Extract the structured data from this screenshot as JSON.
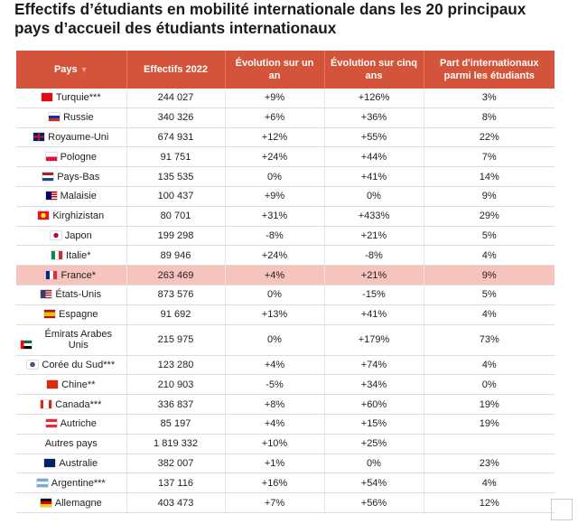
{
  "title": "Effectifs d’étudiants en mobilité internationale dans les 20 principaux pays d’accueil des étudiants internationaux",
  "headers": {
    "country": "Pays",
    "sort_indicator": "▼",
    "effectifs": "Effectifs 2022",
    "evol_1": "Évolution sur un an",
    "evol_5": "Évolution sur cinq ans",
    "share": "Part d'internationaux parmi les étudiants"
  },
  "rows": [
    {
      "country": "Turquie***",
      "flag": "flag-turkey-icon",
      "effectifs": "244 027",
      "evol_1": "+9%",
      "evol_5": "+126%",
      "share": "3%"
    },
    {
      "country": "Russie",
      "flag": "flag-russia-icon",
      "effectifs": "340 326",
      "evol_1": "+6%",
      "evol_5": "+36%",
      "share": "8%"
    },
    {
      "country": "Royaume-Uni",
      "flag": "flag-uk-icon",
      "effectifs": "674 931",
      "evol_1": "+12%",
      "evol_5": "+55%",
      "share": "22%"
    },
    {
      "country": "Pologne",
      "flag": "flag-poland-icon",
      "effectifs": "91 751",
      "evol_1": "+24%",
      "evol_5": "+44%",
      "share": "7%"
    },
    {
      "country": "Pays-Bas",
      "flag": "flag-netherlands-icon",
      "effectifs": "135 535",
      "evol_1": "0%",
      "evol_5": "+41%",
      "share": "14%"
    },
    {
      "country": "Malaisie",
      "flag": "flag-malaysia-icon",
      "effectifs": "100 437",
      "evol_1": "+9%",
      "evol_5": "0%",
      "share": "9%"
    },
    {
      "country": "Kirghizistan",
      "flag": "flag-kyrgyzstan-icon",
      "effectifs": "80 701",
      "evol_1": "+31%",
      "evol_5": "+433%",
      "share": "29%"
    },
    {
      "country": "Japon",
      "flag": "flag-japan-icon",
      "effectifs": "199 298",
      "evol_1": "-8%",
      "evol_5": "+21%",
      "share": "5%"
    },
    {
      "country": "Italie*",
      "flag": "flag-italy-icon",
      "effectifs": "89 946",
      "evol_1": "+24%",
      "evol_5": "-8%",
      "share": "4%"
    },
    {
      "country": "France*",
      "flag": "flag-france-icon",
      "effectifs": "263 469",
      "evol_1": "+4%",
      "evol_5": "+21%",
      "share": "9%",
      "highlight": true
    },
    {
      "country": "États-Unis",
      "flag": "flag-usa-icon",
      "effectifs": "873 576",
      "evol_1": "0%",
      "evol_5": "-15%",
      "share": "5%"
    },
    {
      "country": "Espagne",
      "flag": "flag-spain-icon",
      "effectifs": "91 692",
      "evol_1": "+13%",
      "evol_5": "+41%",
      "share": "4%"
    },
    {
      "country": "Émirats Arabes Unis",
      "flag": "flag-uae-icon",
      "effectifs": "215 975",
      "evol_1": "0%",
      "evol_5": "+179%",
      "share": "73%",
      "tall": true
    },
    {
      "country": "Corée du Sud***",
      "flag": "flag-south-korea-icon",
      "effectifs": "123 280",
      "evol_1": "+4%",
      "evol_5": "+74%",
      "share": "4%"
    },
    {
      "country": "Chine**",
      "flag": "flag-china-icon",
      "effectifs": "210 903",
      "evol_1": "-5%",
      "evol_5": "+34%",
      "share": "0%"
    },
    {
      "country": "Canada***",
      "flag": "flag-canada-icon",
      "effectifs": "336 837",
      "evol_1": "+8%",
      "evol_5": "+60%",
      "share": "19%"
    },
    {
      "country": "Autriche",
      "flag": "flag-austria-icon",
      "effectifs": "85 197",
      "evol_1": "+4%",
      "evol_5": "+15%",
      "share": "19%"
    },
    {
      "country": "Autres pays",
      "flag": "",
      "effectifs": "1 819 332",
      "evol_1": "+10%",
      "evol_5": "+25%",
      "share": ""
    },
    {
      "country": "Australie",
      "flag": "flag-australia-icon",
      "effectifs": "382 007",
      "evol_1": "+1%",
      "evol_5": "0%",
      "share": "23%"
    },
    {
      "country": "Argentine***",
      "flag": "flag-argentina-icon",
      "effectifs": "137 116",
      "evol_1": "+16%",
      "evol_5": "+54%",
      "share": "4%"
    },
    {
      "country": "Allemagne",
      "flag": "flag-germany-icon",
      "effectifs": "403 473",
      "evol_1": "+7%",
      "evol_5": "+56%",
      "share": "12%"
    }
  ],
  "colors": {
    "header_bg": "#d4533b",
    "highlight_bg": "#f6c3bd"
  }
}
